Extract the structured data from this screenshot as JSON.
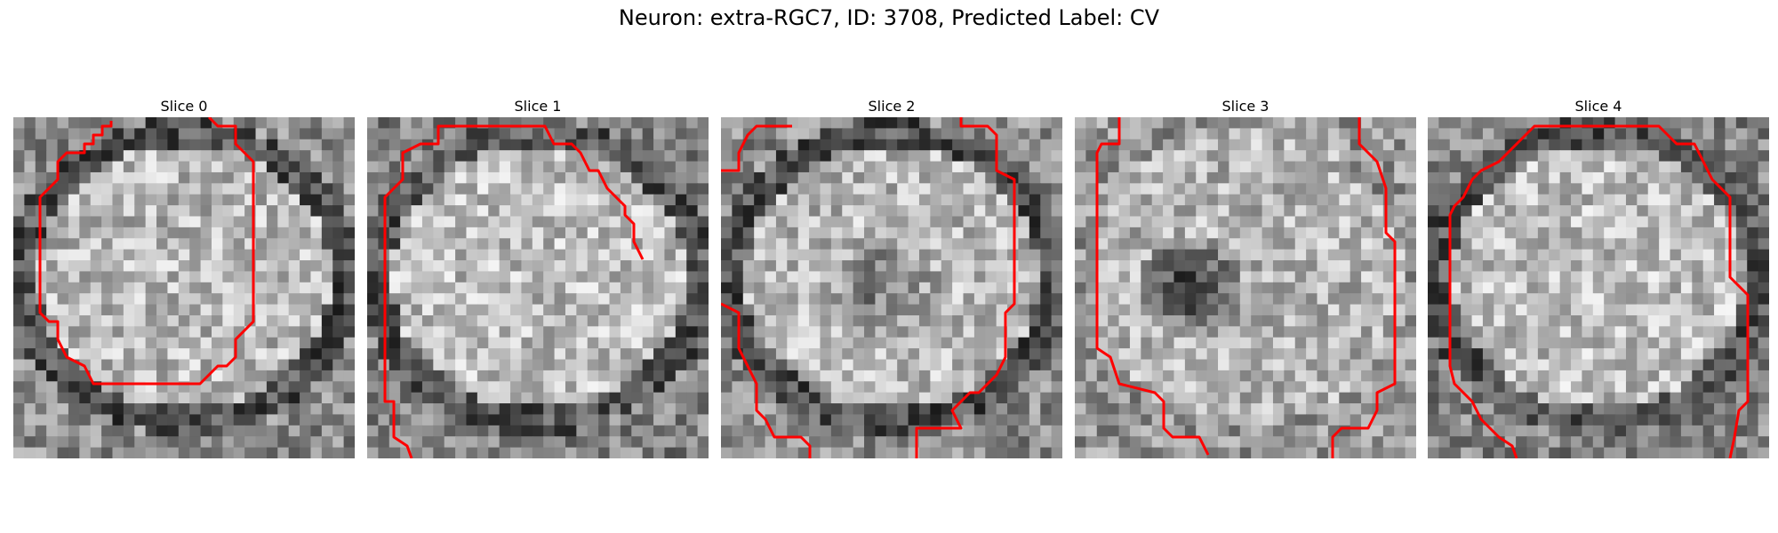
{
  "figure": {
    "title": "Neuron: extra-RGC7, ID: 3708, Predicted Label: CV",
    "colors": {
      "contour": "#ff0000",
      "colormap": "gray"
    }
  },
  "slices": [
    {
      "label": "Slice 0",
      "pattern": "ring-bright-center"
    },
    {
      "label": "Slice 1",
      "pattern": "bright-disc"
    },
    {
      "label": "Slice 2",
      "pattern": "ring-dark-center"
    },
    {
      "label": "Slice 3",
      "pattern": "dark-blob-left"
    },
    {
      "label": "Slice 4",
      "pattern": "bright-disc"
    }
  ]
}
